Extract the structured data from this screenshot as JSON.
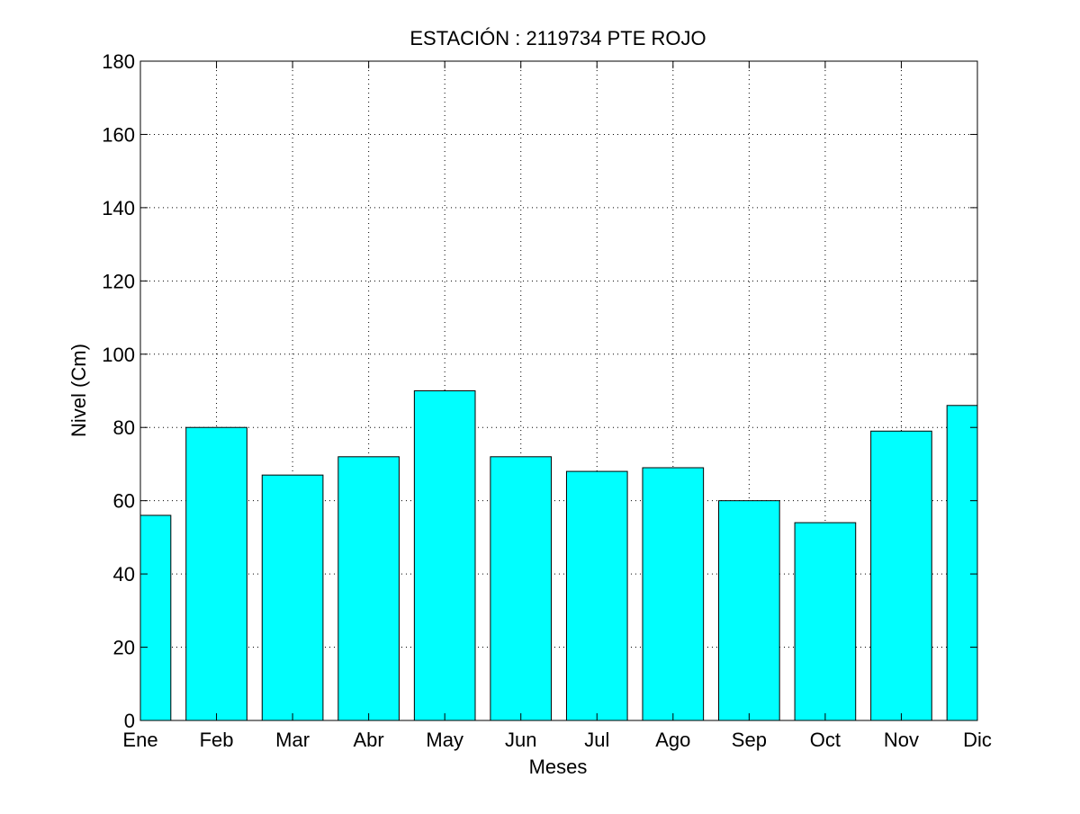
{
  "chart_data": {
    "type": "bar",
    "title": "ESTACIÓN :  2119734  PTE ROJO",
    "xlabel": "Meses",
    "ylabel": "Nivel (Cm)",
    "categories": [
      "Ene",
      "Feb",
      "Mar",
      "Abr",
      "May",
      "Jun",
      "Jul",
      "Ago",
      "Sep",
      "Oct",
      "Nov",
      "Dic"
    ],
    "values": [
      56,
      80,
      67,
      72,
      90,
      72,
      68,
      69,
      60,
      54,
      79,
      86
    ],
    "ylim": [
      0,
      180
    ],
    "yticks": [
      "0",
      "20",
      "40",
      "60",
      "80",
      "100",
      "120",
      "140",
      "160",
      "180"
    ],
    "grid": true,
    "bar_color": "#00ffff",
    "edge_color": "#000000"
  }
}
